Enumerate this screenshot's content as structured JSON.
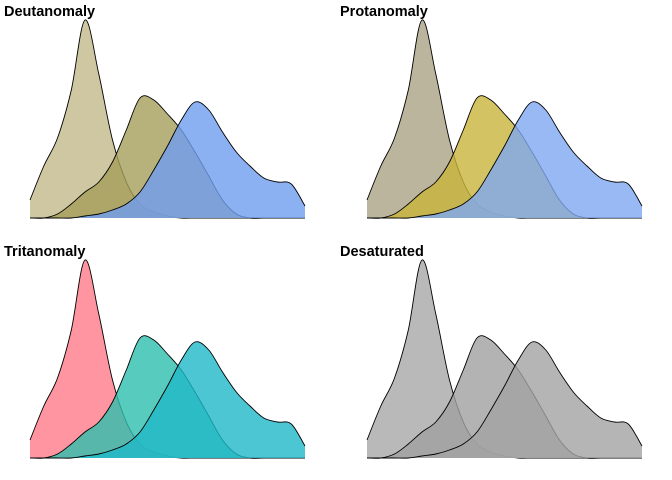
{
  "chart_data": [
    {
      "type": "area",
      "title": "Deutanomaly",
      "xlabel": "",
      "ylabel": "",
      "x": [
        0,
        1,
        2,
        3,
        4,
        5,
        6,
        7,
        8,
        9,
        10,
        11,
        12,
        13,
        14,
        15,
        16,
        17,
        18,
        19,
        20
      ],
      "xlim": [
        0,
        20
      ],
      "ylim": [
        0,
        1
      ],
      "grid": false,
      "series": [
        {
          "color": "#c2b98a",
          "values": [
            0.09,
            0.26,
            0.4,
            0.64,
            0.99,
            0.72,
            0.39,
            0.18,
            0.07,
            0.03,
            0.01,
            0.0,
            0.0,
            0.0,
            0.0,
            0.0,
            0.0,
            0.0,
            0.0,
            0.0,
            0.0
          ]
        },
        {
          "color": "#a59d5a",
          "values": [
            0.0,
            0.0,
            0.02,
            0.07,
            0.13,
            0.18,
            0.28,
            0.44,
            0.6,
            0.59,
            0.52,
            0.44,
            0.33,
            0.21,
            0.09,
            0.02,
            0.0,
            0.0,
            0.0,
            0.0,
            0.0
          ]
        },
        {
          "color": "#6e9ef0",
          "values": [
            0.0,
            0.0,
            0.0,
            0.0,
            0.01,
            0.02,
            0.04,
            0.07,
            0.13,
            0.24,
            0.36,
            0.49,
            0.58,
            0.54,
            0.43,
            0.33,
            0.26,
            0.2,
            0.18,
            0.17,
            0.06
          ]
        }
      ]
    },
    {
      "type": "area",
      "title": "Protanomaly",
      "xlabel": "",
      "ylabel": "",
      "x": [
        0,
        1,
        2,
        3,
        4,
        5,
        6,
        7,
        8,
        9,
        10,
        11,
        12,
        13,
        14,
        15,
        16,
        17,
        18,
        19,
        20
      ],
      "xlim": [
        0,
        20
      ],
      "ylim": [
        0,
        1
      ],
      "grid": false,
      "series": [
        {
          "color": "#a9a283",
          "values": [
            0.09,
            0.26,
            0.4,
            0.64,
            0.99,
            0.72,
            0.39,
            0.18,
            0.07,
            0.03,
            0.01,
            0.0,
            0.0,
            0.0,
            0.0,
            0.0,
            0.0,
            0.0,
            0.0,
            0.0,
            0.0
          ]
        },
        {
          "color": "#c9b43c",
          "values": [
            0.0,
            0.0,
            0.02,
            0.07,
            0.13,
            0.18,
            0.28,
            0.44,
            0.6,
            0.59,
            0.52,
            0.44,
            0.33,
            0.21,
            0.09,
            0.02,
            0.0,
            0.0,
            0.0,
            0.0,
            0.0
          ]
        },
        {
          "color": "#7ea8f0",
          "values": [
            0.0,
            0.0,
            0.0,
            0.0,
            0.01,
            0.02,
            0.04,
            0.07,
            0.13,
            0.24,
            0.36,
            0.49,
            0.58,
            0.54,
            0.43,
            0.33,
            0.26,
            0.2,
            0.18,
            0.17,
            0.06
          ]
        }
      ]
    },
    {
      "type": "area",
      "title": "Tritanomaly",
      "xlabel": "",
      "ylabel": "",
      "x": [
        0,
        1,
        2,
        3,
        4,
        5,
        6,
        7,
        8,
        9,
        10,
        11,
        12,
        13,
        14,
        15,
        16,
        17,
        18,
        19,
        20
      ],
      "xlim": [
        0,
        20
      ],
      "ylim": [
        0,
        1
      ],
      "grid": false,
      "series": [
        {
          "color": "#ff7a8a",
          "values": [
            0.09,
            0.26,
            0.4,
            0.64,
            0.99,
            0.72,
            0.39,
            0.18,
            0.07,
            0.03,
            0.01,
            0.0,
            0.0,
            0.0,
            0.0,
            0.0,
            0.0,
            0.0,
            0.0,
            0.0,
            0.0
          ]
        },
        {
          "color": "#2dbfae",
          "values": [
            0.0,
            0.0,
            0.02,
            0.07,
            0.13,
            0.18,
            0.28,
            0.44,
            0.6,
            0.59,
            0.52,
            0.44,
            0.33,
            0.21,
            0.09,
            0.02,
            0.0,
            0.0,
            0.0,
            0.0,
            0.0
          ]
        },
        {
          "color": "#20b8c8",
          "values": [
            0.0,
            0.0,
            0.0,
            0.0,
            0.01,
            0.02,
            0.04,
            0.07,
            0.13,
            0.24,
            0.36,
            0.49,
            0.58,
            0.54,
            0.43,
            0.33,
            0.26,
            0.2,
            0.18,
            0.17,
            0.06
          ]
        }
      ]
    },
    {
      "type": "area",
      "title": "Desaturated",
      "xlabel": "",
      "ylabel": "",
      "x": [
        0,
        1,
        2,
        3,
        4,
        5,
        6,
        7,
        8,
        9,
        10,
        11,
        12,
        13,
        14,
        15,
        16,
        17,
        18,
        19,
        20
      ],
      "xlim": [
        0,
        20
      ],
      "ylim": [
        0,
        1
      ],
      "grid": false,
      "series": [
        {
          "color": "#a8a8a8",
          "values": [
            0.09,
            0.26,
            0.4,
            0.64,
            0.99,
            0.72,
            0.39,
            0.18,
            0.07,
            0.03,
            0.01,
            0.0,
            0.0,
            0.0,
            0.0,
            0.0,
            0.0,
            0.0,
            0.0,
            0.0,
            0.0
          ]
        },
        {
          "color": "#a0a0a0",
          "values": [
            0.0,
            0.0,
            0.02,
            0.07,
            0.13,
            0.18,
            0.28,
            0.44,
            0.6,
            0.59,
            0.52,
            0.44,
            0.33,
            0.21,
            0.09,
            0.02,
            0.0,
            0.0,
            0.0,
            0.0,
            0.0
          ]
        },
        {
          "color": "#a3a3a3",
          "values": [
            0.0,
            0.0,
            0.0,
            0.0,
            0.01,
            0.02,
            0.04,
            0.07,
            0.13,
            0.24,
            0.36,
            0.49,
            0.58,
            0.54,
            0.43,
            0.33,
            0.26,
            0.2,
            0.18,
            0.17,
            0.06
          ]
        }
      ]
    }
  ]
}
